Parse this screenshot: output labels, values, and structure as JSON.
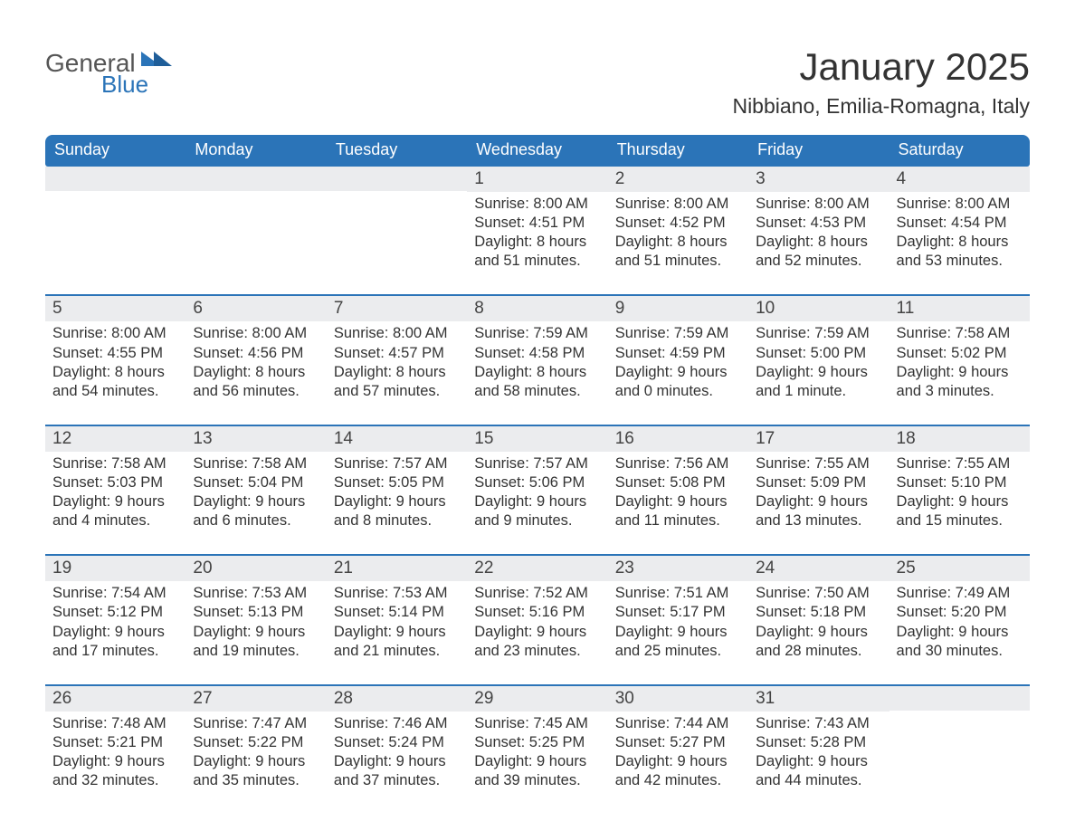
{
  "brand": {
    "general": "General",
    "blue": "Blue"
  },
  "title": "January 2025",
  "location": "Nibbiano, Emilia-Romagna, Italy",
  "colors": {
    "header_bg": "#2b74b8",
    "band_bg": "#ebecee",
    "rule": "#2b74b8",
    "text": "#333333",
    "page_bg": "#ffffff"
  },
  "dow": [
    "Sunday",
    "Monday",
    "Tuesday",
    "Wednesday",
    "Thursday",
    "Friday",
    "Saturday"
  ],
  "weeks": [
    [
      null,
      null,
      null,
      {
        "d": "1",
        "sr": "8:00 AM",
        "ss": "4:51 PM",
        "dl": "8 hours and 51 minutes."
      },
      {
        "d": "2",
        "sr": "8:00 AM",
        "ss": "4:52 PM",
        "dl": "8 hours and 51 minutes."
      },
      {
        "d": "3",
        "sr": "8:00 AM",
        "ss": "4:53 PM",
        "dl": "8 hours and 52 minutes."
      },
      {
        "d": "4",
        "sr": "8:00 AM",
        "ss": "4:54 PM",
        "dl": "8 hours and 53 minutes."
      }
    ],
    [
      {
        "d": "5",
        "sr": "8:00 AM",
        "ss": "4:55 PM",
        "dl": "8 hours and 54 minutes."
      },
      {
        "d": "6",
        "sr": "8:00 AM",
        "ss": "4:56 PM",
        "dl": "8 hours and 56 minutes."
      },
      {
        "d": "7",
        "sr": "8:00 AM",
        "ss": "4:57 PM",
        "dl": "8 hours and 57 minutes."
      },
      {
        "d": "8",
        "sr": "7:59 AM",
        "ss": "4:58 PM",
        "dl": "8 hours and 58 minutes."
      },
      {
        "d": "9",
        "sr": "7:59 AM",
        "ss": "4:59 PM",
        "dl": "9 hours and 0 minutes."
      },
      {
        "d": "10",
        "sr": "7:59 AM",
        "ss": "5:00 PM",
        "dl": "9 hours and 1 minute."
      },
      {
        "d": "11",
        "sr": "7:58 AM",
        "ss": "5:02 PM",
        "dl": "9 hours and 3 minutes."
      }
    ],
    [
      {
        "d": "12",
        "sr": "7:58 AM",
        "ss": "5:03 PM",
        "dl": "9 hours and 4 minutes."
      },
      {
        "d": "13",
        "sr": "7:58 AM",
        "ss": "5:04 PM",
        "dl": "9 hours and 6 minutes."
      },
      {
        "d": "14",
        "sr": "7:57 AM",
        "ss": "5:05 PM",
        "dl": "9 hours and 8 minutes."
      },
      {
        "d": "15",
        "sr": "7:57 AM",
        "ss": "5:06 PM",
        "dl": "9 hours and 9 minutes."
      },
      {
        "d": "16",
        "sr": "7:56 AM",
        "ss": "5:08 PM",
        "dl": "9 hours and 11 minutes."
      },
      {
        "d": "17",
        "sr": "7:55 AM",
        "ss": "5:09 PM",
        "dl": "9 hours and 13 minutes."
      },
      {
        "d": "18",
        "sr": "7:55 AM",
        "ss": "5:10 PM",
        "dl": "9 hours and 15 minutes."
      }
    ],
    [
      {
        "d": "19",
        "sr": "7:54 AM",
        "ss": "5:12 PM",
        "dl": "9 hours and 17 minutes."
      },
      {
        "d": "20",
        "sr": "7:53 AM",
        "ss": "5:13 PM",
        "dl": "9 hours and 19 minutes."
      },
      {
        "d": "21",
        "sr": "7:53 AM",
        "ss": "5:14 PM",
        "dl": "9 hours and 21 minutes."
      },
      {
        "d": "22",
        "sr": "7:52 AM",
        "ss": "5:16 PM",
        "dl": "9 hours and 23 minutes."
      },
      {
        "d": "23",
        "sr": "7:51 AM",
        "ss": "5:17 PM",
        "dl": "9 hours and 25 minutes."
      },
      {
        "d": "24",
        "sr": "7:50 AM",
        "ss": "5:18 PM",
        "dl": "9 hours and 28 minutes."
      },
      {
        "d": "25",
        "sr": "7:49 AM",
        "ss": "5:20 PM",
        "dl": "9 hours and 30 minutes."
      }
    ],
    [
      {
        "d": "26",
        "sr": "7:48 AM",
        "ss": "5:21 PM",
        "dl": "9 hours and 32 minutes."
      },
      {
        "d": "27",
        "sr": "7:47 AM",
        "ss": "5:22 PM",
        "dl": "9 hours and 35 minutes."
      },
      {
        "d": "28",
        "sr": "7:46 AM",
        "ss": "5:24 PM",
        "dl": "9 hours and 37 minutes."
      },
      {
        "d": "29",
        "sr": "7:45 AM",
        "ss": "5:25 PM",
        "dl": "9 hours and 39 minutes."
      },
      {
        "d": "30",
        "sr": "7:44 AM",
        "ss": "5:27 PM",
        "dl": "9 hours and 42 minutes."
      },
      {
        "d": "31",
        "sr": "7:43 AM",
        "ss": "5:28 PM",
        "dl": "9 hours and 44 minutes."
      },
      null
    ]
  ],
  "labels": {
    "sunrise": "Sunrise: ",
    "sunset": "Sunset: ",
    "daylight": "Daylight: "
  }
}
